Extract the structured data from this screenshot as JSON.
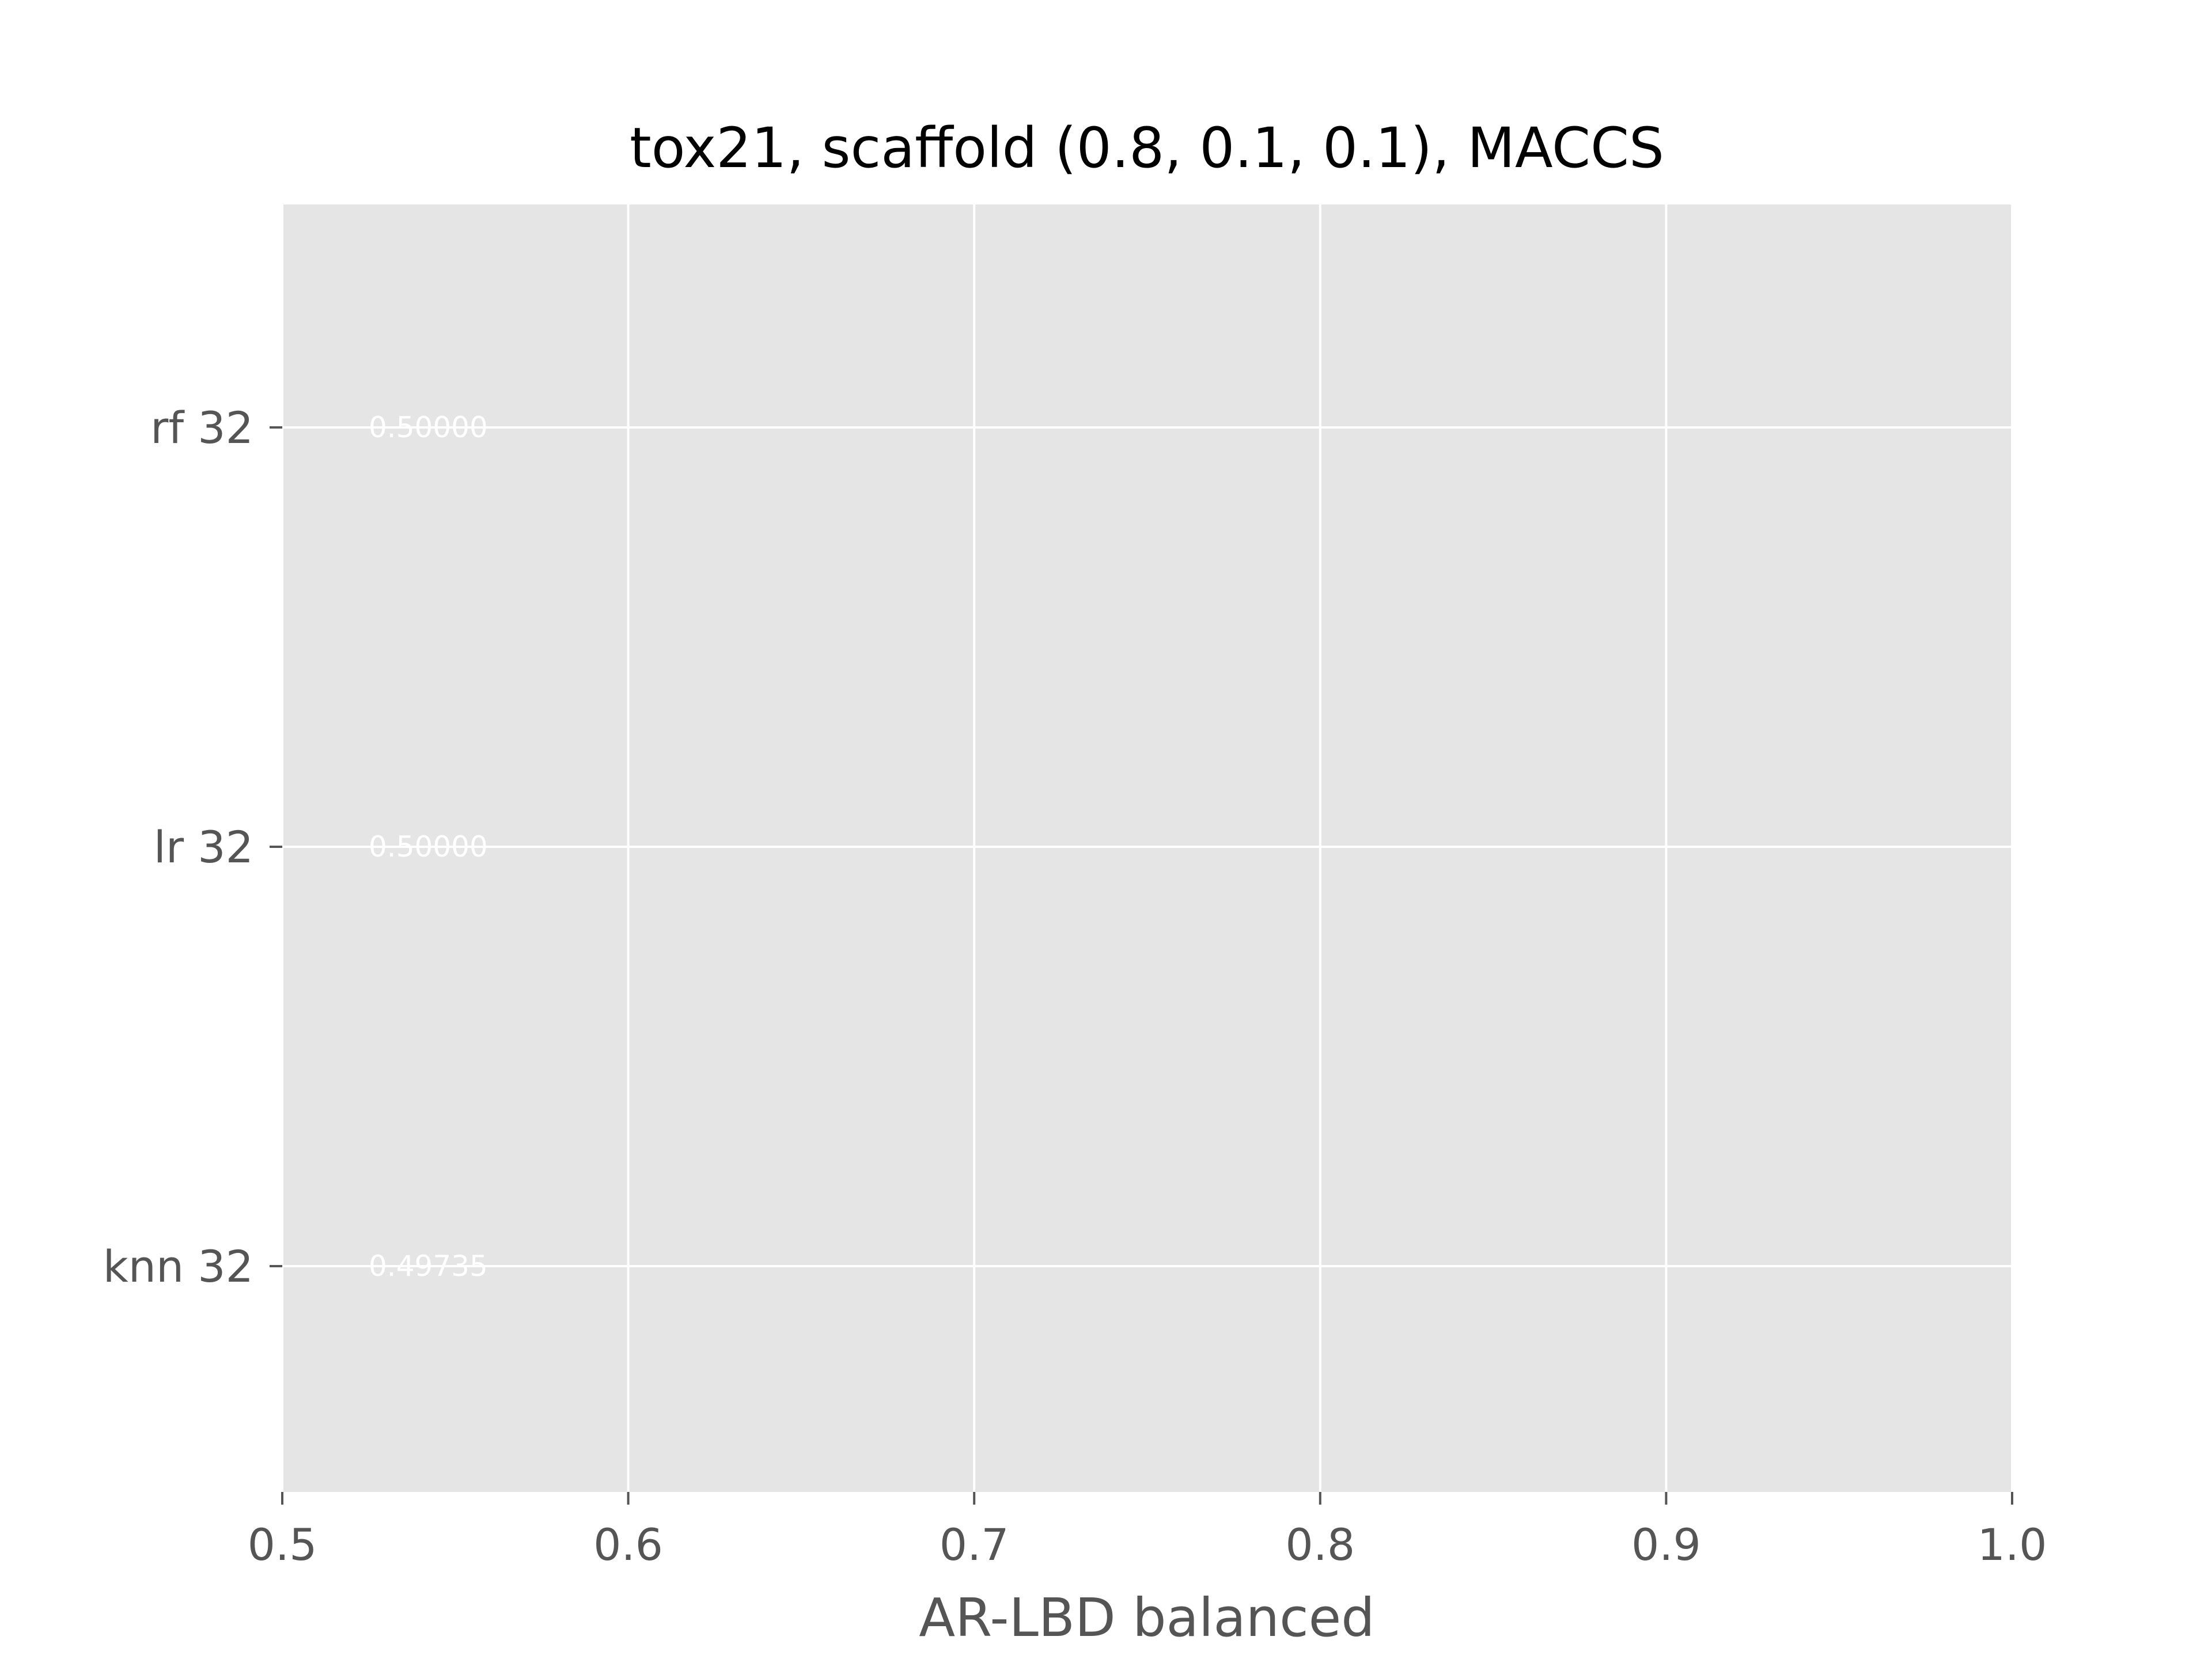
{
  "chart_data": {
    "type": "bar",
    "orientation": "horizontal",
    "title": "tox21, scaffold (0.8, 0.1, 0.1), MACCS",
    "xlabel": "AR-LBD balanced",
    "ylabel": "",
    "categories": [
      "rf 32",
      "lr 32",
      "knn 32"
    ],
    "values": [
      0.5,
      0.5,
      0.49735
    ],
    "value_labels": [
      "0.50000",
      "0.50000",
      "0.49735"
    ],
    "xlim": [
      0.5,
      1.0
    ],
    "xticks": [
      "0.5",
      "0.6",
      "0.7",
      "0.8",
      "0.9",
      "1.0"
    ],
    "grid": true,
    "legend": "none",
    "colors": {
      "plot_background": "#e5e5e5",
      "grid": "#ffffff",
      "bar": "#e24a33",
      "text": "#555555"
    }
  }
}
